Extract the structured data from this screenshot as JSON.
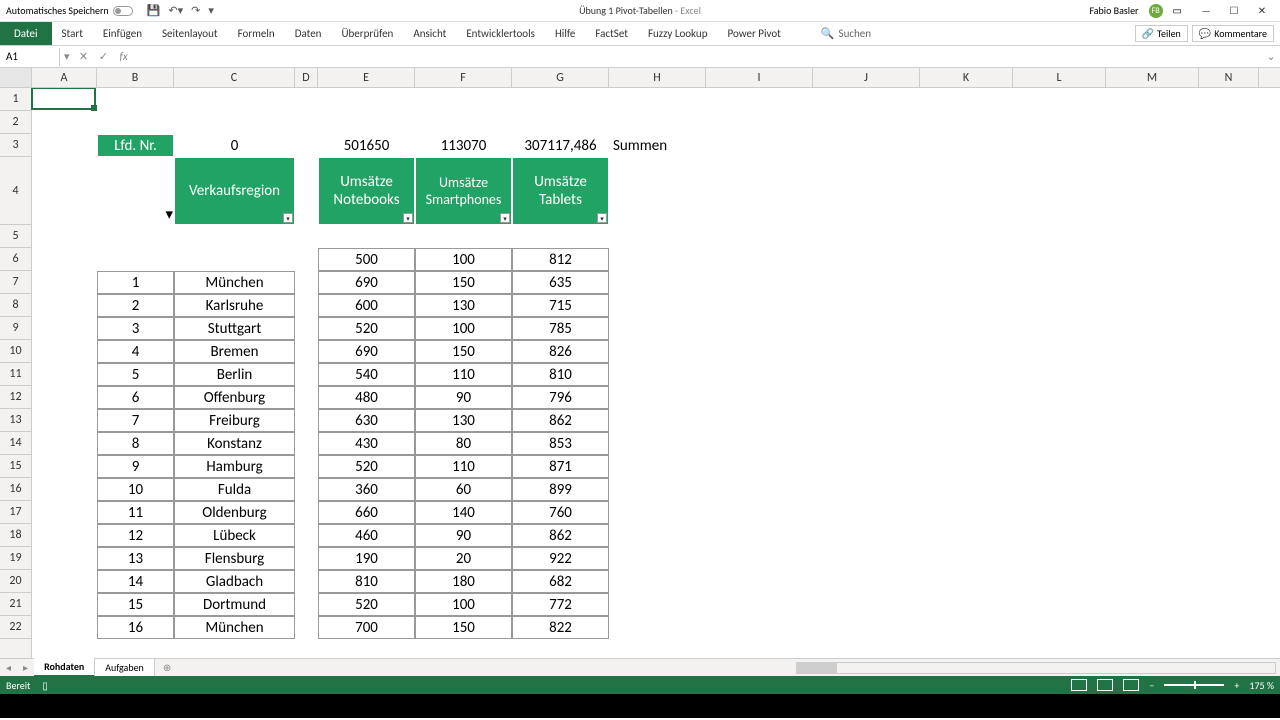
{
  "titlebar": {
    "autosave_label": "Automatisches Speichern",
    "document": "Übung 1 Pivot-Tabellen",
    "app": "Excel",
    "user": "Fabio Basler",
    "user_initials": "FB"
  },
  "ribbon": {
    "file": "Datei",
    "tabs": [
      "Start",
      "Einfügen",
      "Seitenlayout",
      "Formeln",
      "Daten",
      "Überprüfen",
      "Ansicht",
      "Entwicklertools",
      "Hilfe",
      "FactSet",
      "Fuzzy Lookup",
      "Power Pivot"
    ],
    "search_placeholder": "Suchen",
    "share": "Teilen",
    "comments": "Kommentare"
  },
  "formula": {
    "cell_ref": "A1",
    "value": ""
  },
  "columns": {
    "letters": [
      "A",
      "B",
      "C",
      "D",
      "E",
      "F",
      "G",
      "H",
      "I",
      "J",
      "K",
      "L",
      "M",
      "N"
    ],
    "widths": [
      65,
      77,
      121,
      23,
      97,
      97,
      97,
      97,
      107,
      107,
      93,
      93,
      93,
      60
    ]
  },
  "visible_row_count": 22,
  "row3": {
    "lfd_label": "Lfd. Nr.",
    "sum_b": "0",
    "sum_e": "501650",
    "sum_f": "113070",
    "sum_g": "307117,486",
    "summen": "Summen"
  },
  "row4_headers": {
    "c": "Verkaufsregion",
    "e": "Umsätze Notebooks",
    "f": "Umsätze Smartphones",
    "g": "Umsätze Tablets"
  },
  "table_start_row": 6,
  "table": {
    "row6": {
      "nb": "500",
      "sp": "100",
      "tb": "812"
    },
    "rows": [
      {
        "n": "1",
        "city": "München",
        "nb": "690",
        "sp": "150",
        "tb": "635"
      },
      {
        "n": "2",
        "city": "Karlsruhe",
        "nb": "600",
        "sp": "130",
        "tb": "715"
      },
      {
        "n": "3",
        "city": "Stuttgart",
        "nb": "520",
        "sp": "100",
        "tb": "785"
      },
      {
        "n": "4",
        "city": "Bremen",
        "nb": "690",
        "sp": "150",
        "tb": "826"
      },
      {
        "n": "5",
        "city": "Berlin",
        "nb": "540",
        "sp": "110",
        "tb": "810"
      },
      {
        "n": "6",
        "city": "Offenburg",
        "nb": "480",
        "sp": "90",
        "tb": "796"
      },
      {
        "n": "7",
        "city": "Freiburg",
        "nb": "630",
        "sp": "130",
        "tb": "862"
      },
      {
        "n": "8",
        "city": "Konstanz",
        "nb": "430",
        "sp": "80",
        "tb": "853"
      },
      {
        "n": "9",
        "city": "Hamburg",
        "nb": "520",
        "sp": "110",
        "tb": "871"
      },
      {
        "n": "10",
        "city": "Fulda",
        "nb": "360",
        "sp": "60",
        "tb": "899"
      },
      {
        "n": "11",
        "city": "Oldenburg",
        "nb": "660",
        "sp": "140",
        "tb": "760"
      },
      {
        "n": "12",
        "city": "Lübeck",
        "nb": "460",
        "sp": "90",
        "tb": "862"
      },
      {
        "n": "13",
        "city": "Flensburg",
        "nb": "190",
        "sp": "20",
        "tb": "922"
      },
      {
        "n": "14",
        "city": "Gladbach",
        "nb": "810",
        "sp": "180",
        "tb": "682"
      },
      {
        "n": "15",
        "city": "Dortmund",
        "nb": "520",
        "sp": "100",
        "tb": "772"
      },
      {
        "n": "16",
        "city": "München",
        "nb": "700",
        "sp": "150",
        "tb": "822"
      }
    ]
  },
  "sheets": {
    "active": "Rohdaten",
    "other": "Aufgaben"
  },
  "status": {
    "ready": "Bereit",
    "zoom": "175 %"
  },
  "colors": {
    "excel_green": "#217346",
    "header_green": "#21a366",
    "grid_border": "#cccccc",
    "cell_border": "#999999"
  }
}
